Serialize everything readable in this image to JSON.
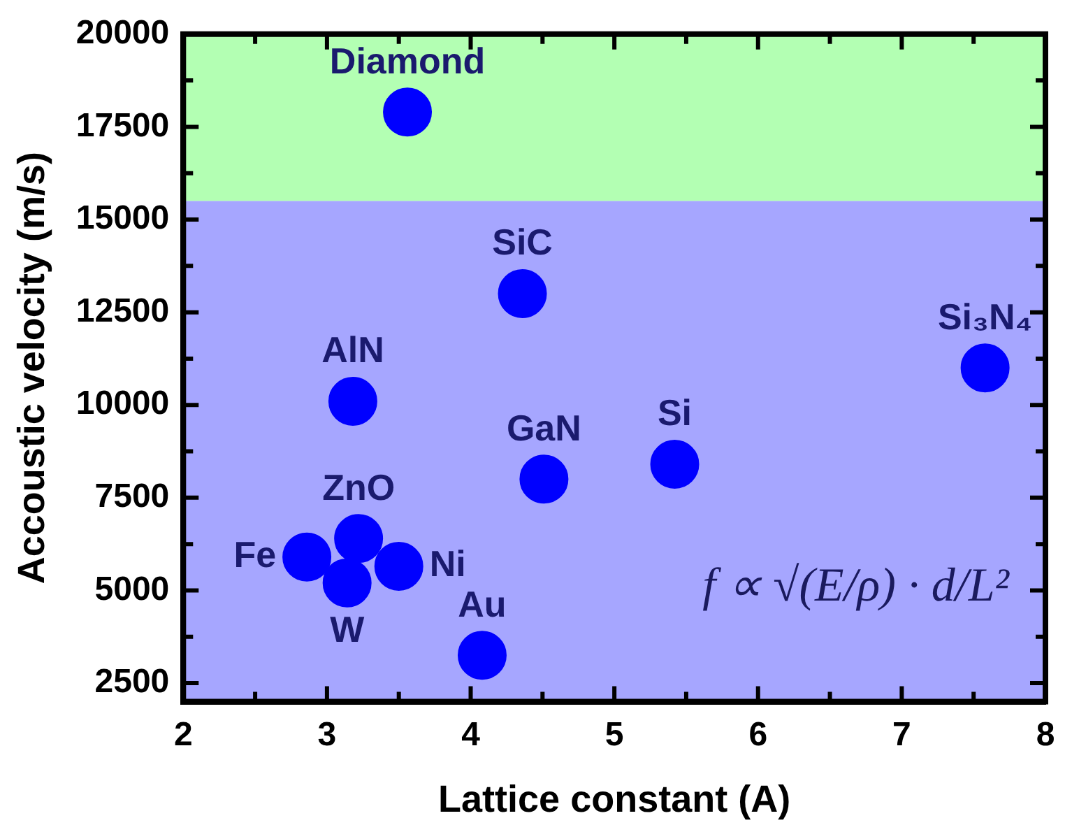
{
  "chart_data": {
    "type": "scatter",
    "xlabel": "Lattice constant (A)",
    "ylabel": "Accoustic velocity (m/s)",
    "x": [
      3.56,
      4.36,
      3.18,
      4.51,
      5.42,
      7.58,
      3.22,
      2.86,
      3.14,
      3.5,
      4.08
    ],
    "series": [
      {
        "color": "#0000ff",
        "values": [
          17900,
          13000,
          10100,
          8000,
          8400,
          11000,
          6400,
          5900,
          5200,
          5650,
          3250
        ]
      }
    ],
    "marker": "circle",
    "grid": false,
    "legend": false,
    "xlim": [
      2,
      8
    ],
    "xticks": [
      2,
      {
        "value": 2.5,
        "label": null
      },
      3,
      {
        "value": 3.5,
        "label": null
      },
      4,
      {
        "value": 4.5,
        "label": null
      },
      5,
      {
        "value": 5.5,
        "label": null
      },
      6,
      {
        "value": 6.5,
        "label": null
      },
      7,
      {
        "value": 7.5,
        "label": null
      },
      8
    ],
    "ylim": [
      2000,
      20000
    ],
    "yticks": [
      2500,
      {
        "value": 3750,
        "label": null
      },
      5000,
      {
        "value": 6250,
        "label": null
      },
      7500,
      {
        "value": 8750,
        "label": null
      },
      10000,
      {
        "value": 11250,
        "label": null
      },
      12500,
      {
        "value": 13750,
        "label": null
      },
      15000,
      {
        "value": 16250,
        "label": null
      },
      17500,
      {
        "value": 18750,
        "label": null
      },
      20000
    ],
    "bands": [
      {
        "axis": "y",
        "from": 15500,
        "to": 20000,
        "color": "#b3ffb3"
      },
      {
        "axis": "y",
        "from": 2000,
        "to": 15500,
        "color": "#a6a6ff"
      }
    ],
    "annotations": [
      {
        "text": "Diamond",
        "x": 3.56,
        "y": 17900
      },
      {
        "text": "SiC",
        "x": 4.36,
        "y": 13000
      },
      {
        "text": "AlN",
        "x": 3.18,
        "y": 10100
      },
      {
        "text": "GaN",
        "x": 4.51,
        "y": 8000
      },
      {
        "text": "Si",
        "x": 5.42,
        "y": 8400
      },
      {
        "text": "Si₃N₄",
        "x": 7.58,
        "y": 11000
      },
      {
        "text": "ZnO",
        "x": 3.22,
        "y": 6400
      },
      {
        "text": "Fe",
        "x": 2.86,
        "y": 5900
      },
      {
        "text": "Ni",
        "x": 3.5,
        "y": 5650
      },
      {
        "text": "W",
        "x": 3.14,
        "y": 5200
      },
      {
        "text": "Au",
        "x": 4.08,
        "y": 3250
      },
      "f ∝ √(E/ρ) · d/L²"
    ]
  }
}
